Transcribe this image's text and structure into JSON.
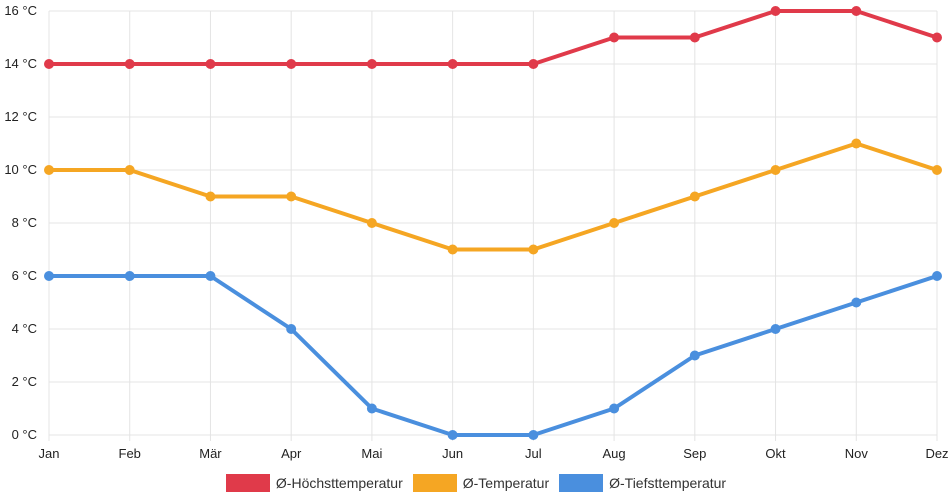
{
  "chart_data": {
    "type": "line",
    "categories": [
      "Jan",
      "Feb",
      "Mär",
      "Apr",
      "Mai",
      "Jun",
      "Jul",
      "Aug",
      "Sep",
      "Okt",
      "Nov",
      "Dez"
    ],
    "series": [
      {
        "name": "Ø-Höchsttemperatur",
        "color": "#e03a4a",
        "values": [
          14,
          14,
          14,
          14,
          14,
          14,
          14,
          15,
          15,
          16,
          16,
          15
        ]
      },
      {
        "name": "Ø-Temperatur",
        "color": "#f5a623",
        "values": [
          10,
          10,
          9,
          9,
          8,
          7,
          7,
          8,
          9,
          10,
          11,
          10
        ]
      },
      {
        "name": "Ø-Tiefsttemperatur",
        "color": "#4a8fde",
        "values": [
          6,
          6,
          6,
          4,
          1,
          0,
          0,
          1,
          3,
          4,
          5,
          6
        ]
      }
    ],
    "ylim": [
      0,
      16
    ],
    "yticks": [
      0,
      2,
      4,
      6,
      8,
      10,
      12,
      14,
      16
    ],
    "ytick_suffix": " °C",
    "grid": true,
    "legend_position": "bottom"
  }
}
